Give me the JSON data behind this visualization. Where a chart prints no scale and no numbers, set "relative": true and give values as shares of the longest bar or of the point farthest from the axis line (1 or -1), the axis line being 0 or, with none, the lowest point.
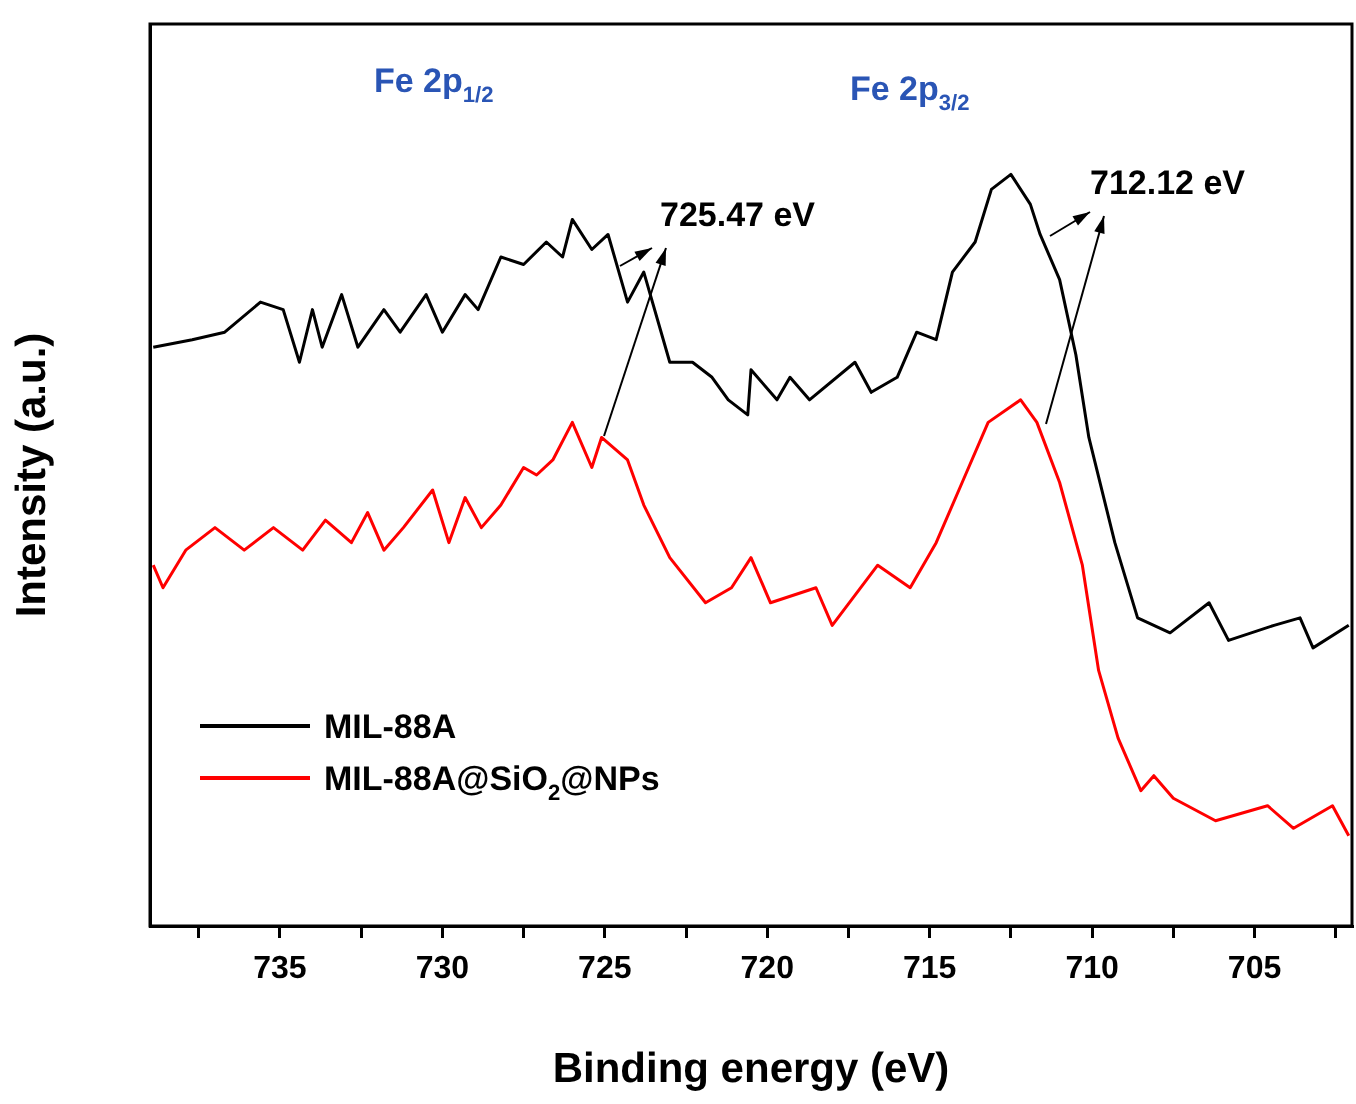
{
  "chart_data": {
    "type": "line",
    "relative": true,
    "xlabel": "Binding energy (eV)",
    "ylabel": "Intensity (a.u.)",
    "xlim": [
      739,
      702
    ],
    "xticks": [
      {
        "value": 737.5,
        "label": null
      },
      735,
      {
        "value": 732.5,
        "label": null
      },
      730,
      {
        "value": 727.5,
        "label": null
      },
      725,
      {
        "value": 722.5,
        "label": null
      },
      720,
      {
        "value": 717.5,
        "label": null
      },
      715,
      {
        "value": 712.5,
        "label": null
      },
      710,
      {
        "value": 707.5,
        "label": null
      },
      705,
      {
        "value": 702.5,
        "label": null
      }
    ],
    "legend": "bottom left",
    "grid": false,
    "series": [
      {
        "name": "MIL-88A",
        "color": "#000000",
        "x": [
          738.9,
          737.7,
          736.7,
          735.6,
          734.9,
          734.4,
          734.0,
          733.7,
          733.1,
          732.6,
          731.8,
          731.3,
          730.5,
          730.0,
          729.3,
          728.9,
          728.2,
          727.5,
          726.8,
          726.3,
          726.0,
          725.4,
          724.9,
          724.3,
          723.8,
          723.0,
          722.3,
          721.7,
          721.2,
          720.6,
          720.5,
          719.7,
          719.3,
          718.7,
          717.3,
          716.8,
          716.0,
          715.4,
          714.8,
          714.3,
          713.6,
          713.1,
          712.5,
          711.9,
          711.6,
          711.0,
          710.5,
          710.1,
          709.3,
          708.6,
          707.6,
          706.4,
          705.8,
          704.4,
          703.6,
          703.2,
          702.1
        ],
        "values": [
          0.77,
          0.78,
          0.79,
          0.83,
          0.82,
          0.75,
          0.82,
          0.77,
          0.84,
          0.77,
          0.82,
          0.79,
          0.84,
          0.79,
          0.84,
          0.82,
          0.89,
          0.88,
          0.91,
          0.89,
          0.94,
          0.9,
          0.92,
          0.83,
          0.87,
          0.75,
          0.75,
          0.73,
          0.7,
          0.68,
          0.74,
          0.7,
          0.73,
          0.7,
          0.75,
          0.71,
          0.73,
          0.79,
          0.78,
          0.87,
          0.91,
          0.98,
          1,
          0.96,
          0.92,
          0.86,
          0.76,
          0.65,
          0.51,
          0.41,
          0.39,
          0.43,
          0.38,
          0.4,
          0.41,
          0.37,
          0.4
        ]
      },
      {
        "name": "MIL-88A@SiO$_{2}$@NPs",
        "color": "#ff0000",
        "x": [
          738.9,
          738.6,
          737.9,
          737.0,
          736.1,
          735.2,
          734.3,
          733.6,
          732.8,
          732.3,
          731.8,
          731.2,
          730.3,
          729.8,
          729.3,
          728.8,
          728.2,
          727.5,
          727.1,
          726.6,
          726.0,
          725.4,
          725.1,
          724.3,
          723.8,
          723.0,
          721.9,
          721.1,
          720.5,
          719.9,
          718.5,
          718.0,
          716.6,
          715.6,
          714.8,
          714.0,
          713.2,
          712.2,
          711.7,
          711.0,
          710.3,
          709.8,
          709.2,
          708.5,
          708.1,
          707.5,
          706.2,
          704.6,
          703.8,
          702.6,
          702.1
        ],
        "values": [
          0.48,
          0.45,
          0.5,
          0.53,
          0.5,
          0.53,
          0.5,
          0.54,
          0.51,
          0.55,
          0.5,
          0.53,
          0.58,
          0.51,
          0.57,
          0.53,
          0.56,
          0.61,
          0.6,
          0.62,
          0.67,
          0.61,
          0.65,
          0.62,
          0.56,
          0.49,
          0.43,
          0.45,
          0.49,
          0.43,
          0.45,
          0.4,
          0.48,
          0.45,
          0.51,
          0.59,
          0.67,
          0.7,
          0.67,
          0.59,
          0.48,
          0.34,
          0.25,
          0.18,
          0.2,
          0.17,
          0.14,
          0.16,
          0.13,
          0.16,
          0.12
        ]
      }
    ],
    "annotations": [
      "Fe 2p$_{1/2}$",
      "Fe 2p$_{3/2}$",
      "725.47 eV",
      "712.12 eV"
    ]
  }
}
